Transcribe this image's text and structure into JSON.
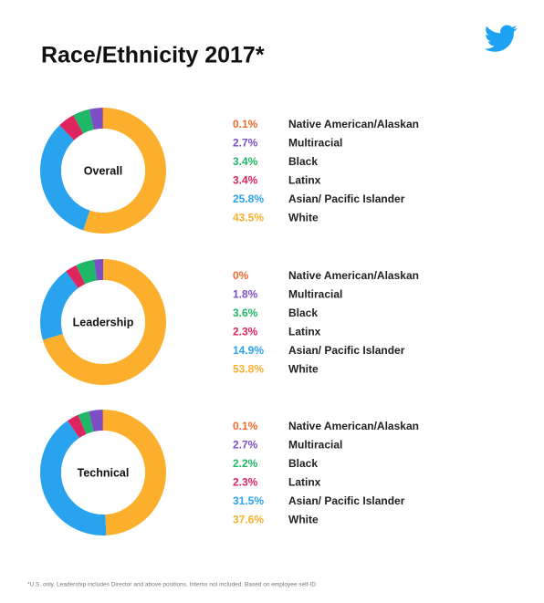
{
  "title": "Race/Ethnicity 2017*",
  "footnote": "*U.S. only. Leadership includes Director and above positions. Interns not included. Based on employee self-ID",
  "chart_data": [
    {
      "type": "donut",
      "title": "Overall",
      "categories": [
        "Native American/Alaskan",
        "Multiracial",
        "Black",
        "Latinx",
        "Asian/ Pacific Islander",
        "White"
      ],
      "colors": [
        "#f26b2a",
        "#7c4fc4",
        "#1fb866",
        "#e0245e",
        "#2aa3ef",
        "#fbaf2c"
      ],
      "values": [
        0.1,
        2.7,
        3.4,
        3.4,
        25.8,
        43.5
      ],
      "value_labels": [
        "0.1%",
        "2.7%",
        "3.4%",
        "3.4%",
        "25.8%",
        "43.5%"
      ]
    },
    {
      "type": "donut",
      "title": "Leadership",
      "categories": [
        "Native American/Alaskan",
        "Multiracial",
        "Black",
        "Latinx",
        "Asian/ Pacific Islander",
        "White"
      ],
      "colors": [
        "#f26b2a",
        "#7c4fc4",
        "#1fb866",
        "#e0245e",
        "#2aa3ef",
        "#fbaf2c"
      ],
      "values": [
        0,
        1.8,
        3.6,
        2.3,
        14.9,
        53.8
      ],
      "value_labels": [
        "0%",
        "1.8%",
        "3.6%",
        "2.3%",
        "14.9%",
        "53.8%"
      ]
    },
    {
      "type": "donut",
      "title": "Technical",
      "categories": [
        "Native American/Alaskan",
        "Multiracial",
        "Black",
        "Latinx",
        "Asian/ Pacific Islander",
        "White"
      ],
      "colors": [
        "#f26b2a",
        "#7c4fc4",
        "#1fb866",
        "#e0245e",
        "#2aa3ef",
        "#fbaf2c"
      ],
      "values": [
        0.1,
        2.7,
        2.2,
        2.3,
        31.5,
        37.6
      ],
      "value_labels": [
        "0.1%",
        "2.7%",
        "2.2%",
        "2.3%",
        "31.5%",
        "37.6%"
      ]
    }
  ]
}
